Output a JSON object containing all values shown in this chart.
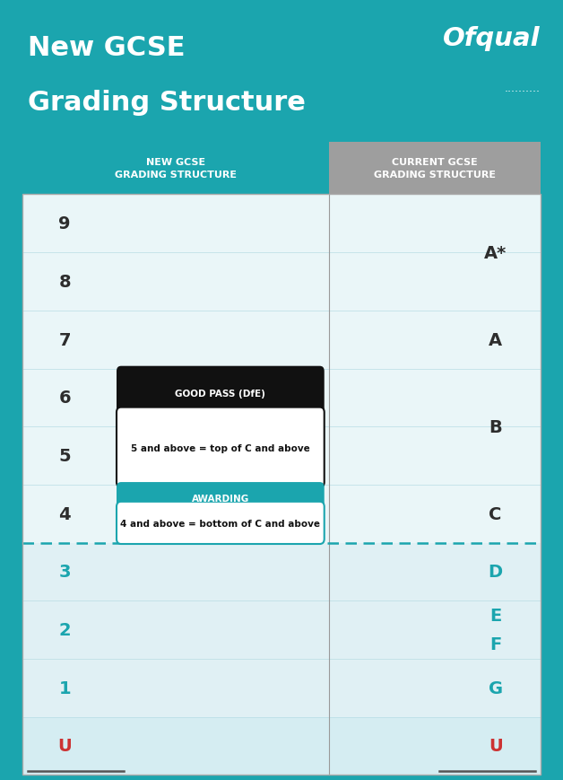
{
  "header_bg": "#1ba5ae",
  "title_line1": "New GCSE",
  "title_line2": "Grading Structure",
  "title_color": "#ffffff",
  "ofqual_text": "Ofqual",
  "ofqual_dots": "..........",
  "ofqual_color": "#ffffff",
  "col1_header": "NEW GCSE\nGRADING STRUCTURE",
  "col2_header": "CURRENT GCSE\nGRADING STRUCTURE",
  "col1_header_bg": "#1ba5ae",
  "col2_header_bg": "#9e9e9e",
  "header_text_color": "#ffffff",
  "new_grades": [
    "9",
    "8",
    "7",
    "6",
    "5",
    "4",
    "3",
    "2",
    "1",
    "U"
  ],
  "new_grade_colors": [
    "#2d2d2d",
    "#2d2d2d",
    "#2d2d2d",
    "#2d2d2d",
    "#2d2d2d",
    "#2d2d2d",
    "#1ba5ae",
    "#1ba5ae",
    "#1ba5ae",
    "#cc3333"
  ],
  "old_grades_info": [
    {
      "label": "A*",
      "r_start": 0,
      "r_end": 2,
      "color": "#2d2d2d"
    },
    {
      "label": "A",
      "r_start": 2,
      "r_end": 3,
      "color": "#2d2d2d"
    },
    {
      "label": "B",
      "r_start": 3,
      "r_end": 5,
      "color": "#2d2d2d"
    },
    {
      "label": "C",
      "r_start": 5,
      "r_end": 6,
      "color": "#2d2d2d"
    },
    {
      "label": "D",
      "r_start": 6,
      "r_end": 7,
      "color": "#1ba5ae"
    },
    {
      "label": "E",
      "r_start": 7,
      "r_end": 7.5,
      "color": "#1ba5ae"
    },
    {
      "label": "F",
      "r_start": 7.5,
      "r_end": 8,
      "color": "#1ba5ae"
    },
    {
      "label": "G",
      "r_start": 8,
      "r_end": 9,
      "color": "#1ba5ae"
    },
    {
      "label": "U",
      "r_start": 9,
      "r_end": 10,
      "color": "#cc3333"
    }
  ],
  "good_pass_title": "GOOD PASS (DfE)",
  "good_pass_body": "5 and above = top of C and above",
  "awarding_title": "AWARDING",
  "awarding_body": "4 and above = bottom of C and above",
  "dashed_line_color": "#1ba5ae",
  "teal_color": "#1ba5ae",
  "row_color_top": "#eaf6f8",
  "row_color_bot": "#e0f0f4",
  "row_color_u": "#d5edf2"
}
